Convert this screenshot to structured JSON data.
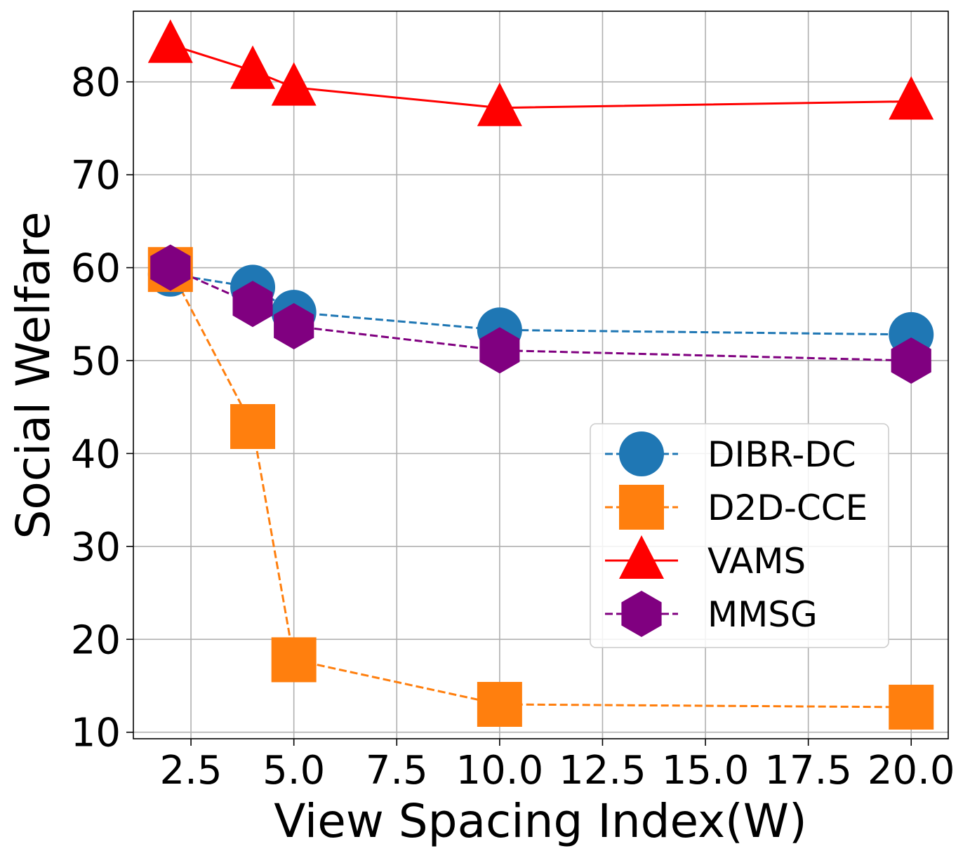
{
  "chart_data": {
    "type": "line",
    "xlabel": "View Spacing Index(W)",
    "ylabel": "Social Welfare",
    "xlim": [
      1.1,
      20.9
    ],
    "ylim": [
      9.3,
      87.6
    ],
    "xticks": [
      2.5,
      5.0,
      7.5,
      10.0,
      12.5,
      15.0,
      17.5,
      20.0
    ],
    "xtick_labels": [
      "2.5",
      "5.0",
      "7.5",
      "10.0",
      "12.5",
      "15.0",
      "17.5",
      "20.0"
    ],
    "yticks": [
      10,
      20,
      30,
      40,
      50,
      60,
      70,
      80
    ],
    "ytick_labels": [
      "10",
      "20",
      "30",
      "40",
      "50",
      "60",
      "70",
      "80"
    ],
    "grid": true,
    "legend_position": "center-right",
    "x": [
      2,
      4,
      5,
      10,
      20
    ],
    "series": [
      {
        "name": "DIBR-DC",
        "color": "#1f77b4",
        "marker": "circle",
        "line": "dashed",
        "values": [
          59.3,
          57.9,
          55.2,
          53.3,
          52.8
        ]
      },
      {
        "name": "D2D-CCE",
        "color": "#ff7f0e",
        "marker": "square",
        "line": "dashed",
        "values": [
          59.8,
          42.9,
          17.8,
          13.0,
          12.7
        ]
      },
      {
        "name": "VAMS",
        "color": "#ff0000",
        "marker": "triangle",
        "line": "solid",
        "values": [
          84.0,
          81.2,
          79.4,
          77.2,
          77.9
        ]
      },
      {
        "name": "MMSG",
        "color": "#800080",
        "marker": "hexagon",
        "line": "dashed",
        "values": [
          60.0,
          56.1,
          53.7,
          51.1,
          50.0
        ]
      }
    ]
  }
}
